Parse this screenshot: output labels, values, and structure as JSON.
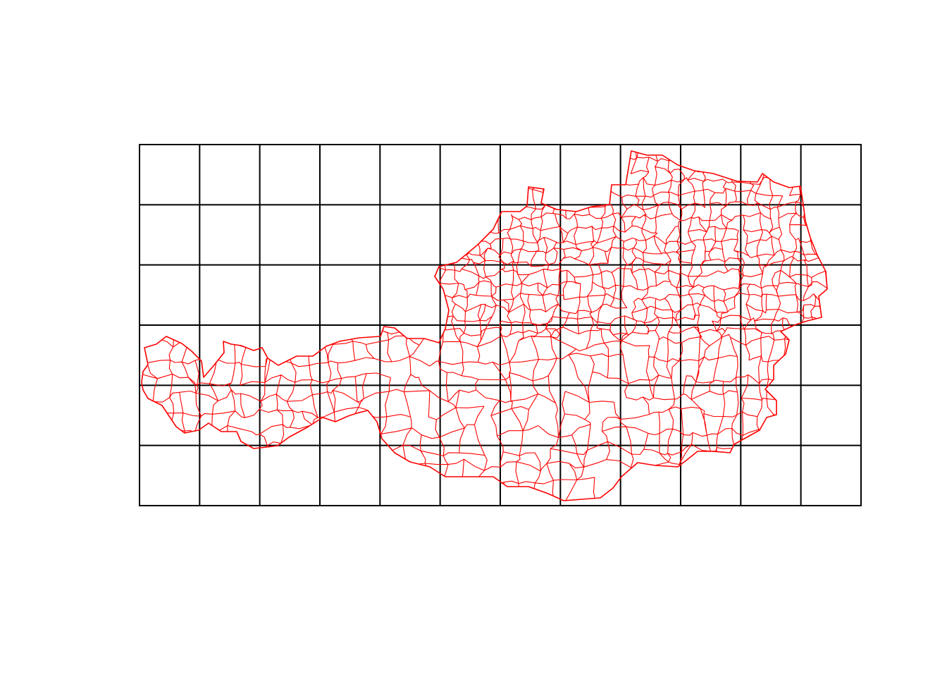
{
  "map": {
    "type": "municipality-boundaries",
    "boundary_color": "#ff0000",
    "grid_color": "#000000",
    "background": "#ffffff"
  },
  "grid": {
    "columns": 12,
    "rows": 6
  }
}
